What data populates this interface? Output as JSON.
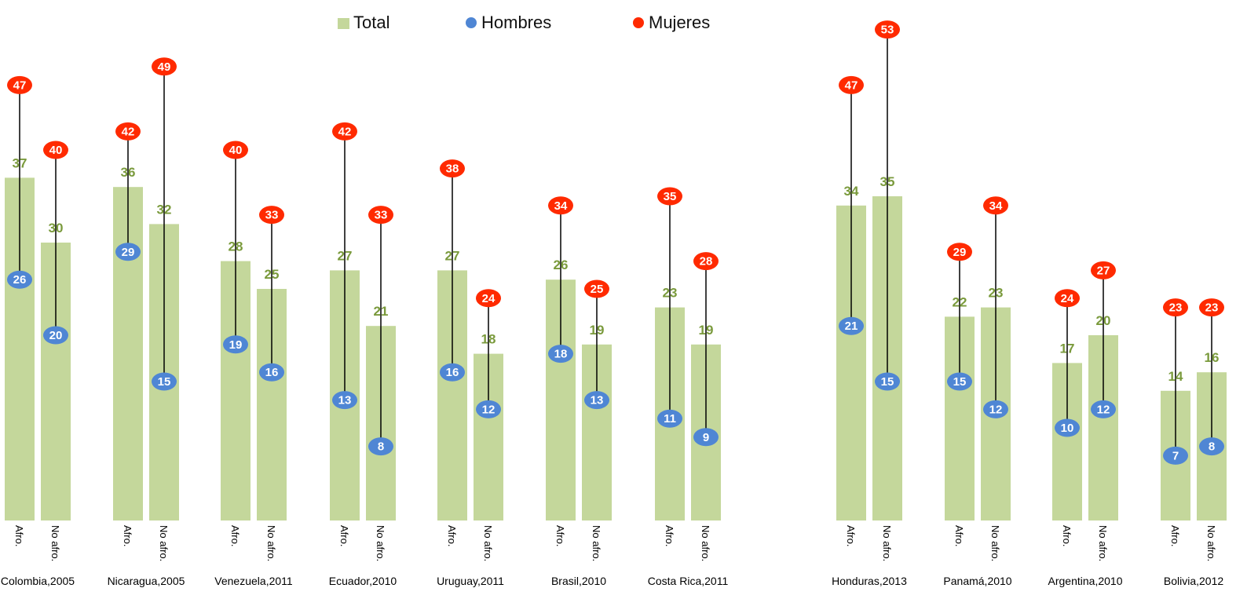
{
  "chart_data": {
    "type": "bar",
    "categories": [
      "Colombia,2005",
      "Nicaragua,2005",
      "Venezuela,2011",
      "Ecuador,2010",
      "Uruguay,2011",
      "Brasil,2010",
      "Costa Rica,2011",
      "Honduras,2013",
      "Panamá,2010",
      "Argentina,2010",
      "Bolivia,2012"
    ],
    "subcategories": [
      "Afro.",
      "No afro."
    ],
    "series": [
      {
        "name": "Total",
        "color": "#c4d79b",
        "values": [
          [
            37,
            30
          ],
          [
            36,
            32
          ],
          [
            28,
            25
          ],
          [
            27,
            21
          ],
          [
            27,
            18
          ],
          [
            26,
            19
          ],
          [
            23,
            19
          ],
          [
            34,
            35
          ],
          [
            22,
            23
          ],
          [
            17,
            20
          ],
          [
            14,
            16
          ]
        ]
      },
      {
        "name": "Hombres",
        "color": "#4f86d4",
        "values": [
          [
            26,
            20
          ],
          [
            29,
            15
          ],
          [
            19,
            16
          ],
          [
            13,
            8
          ],
          [
            16,
            12
          ],
          [
            18,
            13
          ],
          [
            11,
            9
          ],
          [
            21,
            15
          ],
          [
            15,
            12
          ],
          [
            10,
            12
          ],
          [
            7,
            8
          ]
        ]
      },
      {
        "name": "Mujeres",
        "color": "#ff2a00",
        "values": [
          [
            47,
            40
          ],
          [
            42,
            49
          ],
          [
            40,
            33
          ],
          [
            42,
            33
          ],
          [
            38,
            24
          ],
          [
            34,
            25
          ],
          [
            35,
            28
          ],
          [
            47,
            53
          ],
          [
            29,
            34
          ],
          [
            24,
            27
          ],
          [
            23,
            23
          ]
        ]
      }
    ],
    "legend": [
      "Total",
      "Hombres",
      "Mujeres"
    ],
    "legend_position": "top-center",
    "ylim": [
      0,
      55
    ],
    "grid": false
  }
}
